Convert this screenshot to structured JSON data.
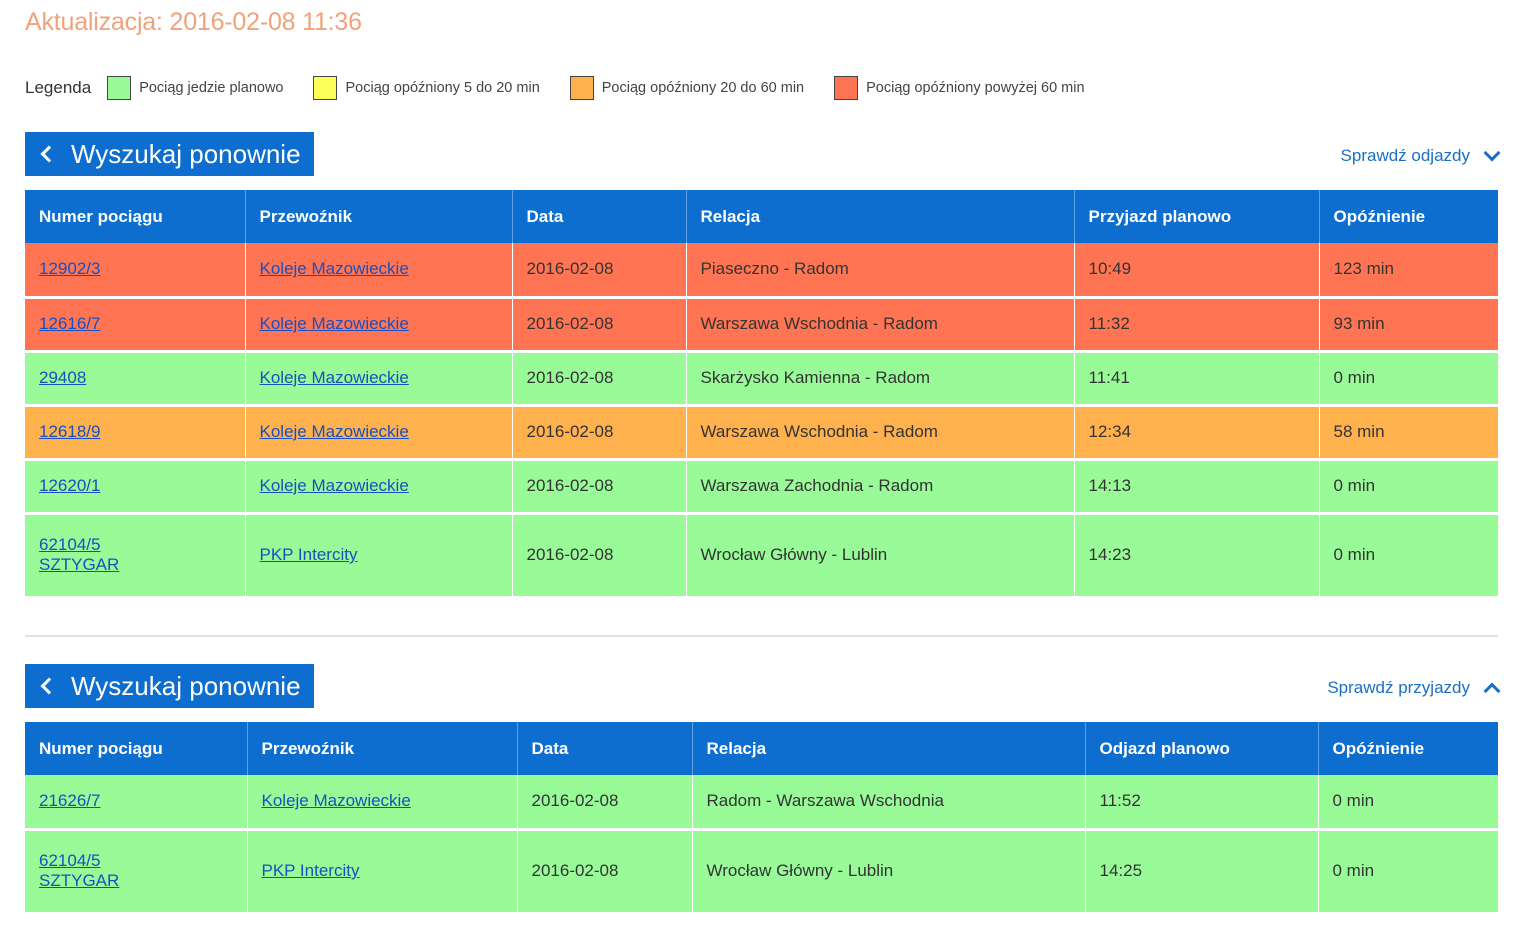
{
  "header": {
    "update_text": "Aktualizacja: 2016-02-08 11:36"
  },
  "legend": {
    "title": "Legenda",
    "items": [
      {
        "label": "Pociąg jedzie planowo",
        "color": "#98fb98"
      },
      {
        "label": "Pociąg opóźniony 5 do 20 min",
        "color": "#ffff5a"
      },
      {
        "label": "Pociąg opóźniony 20 do 60 min",
        "color": "#ffb14e"
      },
      {
        "label": "Pociąg opóźniony powyżej 60 min",
        "color": "#ff7554"
      }
    ]
  },
  "arrivals": {
    "search_label": "Wyszukaj ponownie",
    "toggle_label": "Sprawdź odjazdy",
    "columns": [
      "Numer pociągu",
      "Przewoźnik",
      "Data",
      "Relacja",
      "Przyjazd planowo",
      "Opóźnienie"
    ],
    "rows": [
      {
        "status": "red",
        "number": "12902/3",
        "number2": "",
        "carrier": "Koleje Mazowieckie",
        "date": "2016-02-08",
        "route": "Piaseczno - Radom",
        "time": "10:49",
        "delay": "123 min"
      },
      {
        "status": "red",
        "number": "12616/7",
        "number2": "",
        "carrier": "Koleje Mazowieckie",
        "date": "2016-02-08",
        "route": "Warszawa Wschodnia - Radom",
        "time": "11:32",
        "delay": "93 min"
      },
      {
        "status": "green",
        "number": "29408",
        "number2": "",
        "carrier": "Koleje Mazowieckie",
        "date": "2016-02-08",
        "route": "Skarżysko Kamienna - Radom",
        "time": "11:41",
        "delay": "0 min"
      },
      {
        "status": "orange",
        "number": "12618/9",
        "number2": "",
        "carrier": "Koleje Mazowieckie",
        "date": "2016-02-08",
        "route": "Warszawa Wschodnia - Radom",
        "time": "12:34",
        "delay": "58 min"
      },
      {
        "status": "green",
        "number": "12620/1",
        "number2": "",
        "carrier": "Koleje Mazowieckie",
        "date": "2016-02-08",
        "route": "Warszawa Zachodnia - Radom",
        "time": "14:13",
        "delay": "0 min"
      },
      {
        "status": "green",
        "number": "62104/5",
        "number2": "SZTYGAR",
        "carrier": "PKP Intercity",
        "date": "2016-02-08",
        "route": "Wrocław Główny - Lublin",
        "time": "14:23",
        "delay": "0 min"
      }
    ]
  },
  "departures": {
    "search_label": "Wyszukaj ponownie",
    "toggle_label": "Sprawdź przyjazdy",
    "columns": [
      "Numer pociągu",
      "Przewoźnik",
      "Data",
      "Relacja",
      "Odjazd planowo",
      "Opóźnienie"
    ],
    "rows": [
      {
        "status": "green",
        "number": "21626/7",
        "number2": "",
        "carrier": "Koleje Mazowieckie",
        "date": "2016-02-08",
        "route": "Radom - Warszawa Wschodnia",
        "time": "11:52",
        "delay": "0 min"
      },
      {
        "status": "green",
        "number": "62104/5",
        "number2": "SZTYGAR",
        "carrier": "PKP Intercity",
        "date": "2016-02-08",
        "route": "Wrocław Główny - Lublin",
        "time": "14:25",
        "delay": "0 min"
      }
    ]
  }
}
